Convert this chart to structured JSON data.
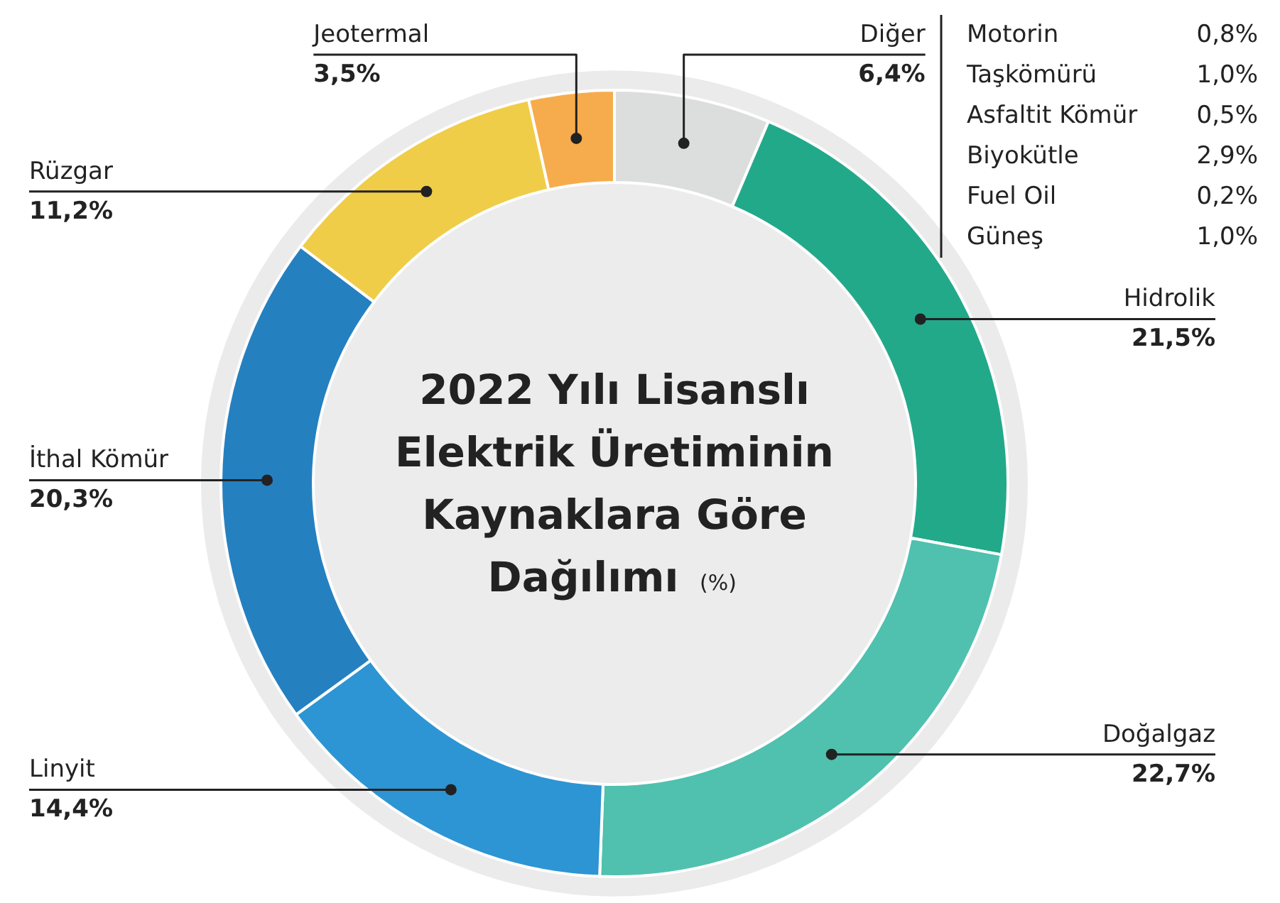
{
  "chart_data": {
    "type": "donut",
    "title": "2022 Yılı Lisanslı Elektrik Üretiminin Kaynaklara Göre Dağılımı",
    "subtitle": "(%)",
    "categories": [
      "Diğer",
      "Hidrolik",
      "Doğalgaz",
      "Linyit",
      "İthal Kömür",
      "Rüzgar",
      "Jeotermal"
    ],
    "values": [
      6.4,
      21.5,
      22.7,
      14.4,
      20.3,
      11.2,
      3.5
    ],
    "colors": [
      "#dcdedd",
      "#22a98a",
      "#4fc1ae",
      "#2d95d3",
      "#2580c0",
      "#f0cd48",
      "#f6ac4c"
    ],
    "value_labels": [
      "6,4%",
      "21,5%",
      "22,7%",
      "14,4%",
      "20,3%",
      "11,2%",
      "3,5%"
    ],
    "annotations": [
      "Motorin",
      "0,8%",
      "Taşkömürü",
      "1,0%",
      "Asfaltit Kömür",
      "0,5%",
      "Biyokütle",
      "2,9%",
      "Fuel Oil",
      "0,2%",
      "Güneş",
      "1,0%"
    ]
  }
}
